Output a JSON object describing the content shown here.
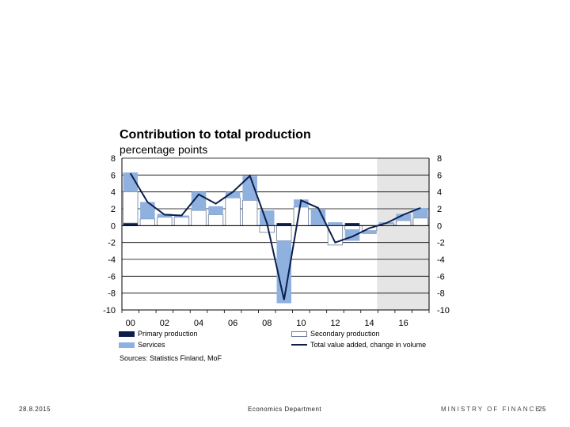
{
  "colors": {
    "primary": "#0b1f4a",
    "secondary": "#ffffff",
    "secondary_border": "#6a7a99",
    "services": "#8fb1e0",
    "line": "#0b1f4a",
    "forecast_shade": "#e5e5e5"
  },
  "chart_data": {
    "type": "bar",
    "title": "Contribution to total production",
    "ylabel": "percentage points",
    "xlabel": "",
    "ylim": [
      -10,
      8
    ],
    "yticks": [
      8,
      6,
      4,
      2,
      0,
      -2,
      -4,
      -6,
      -8,
      -10
    ],
    "x_tick_labels": [
      "00",
      "02",
      "04",
      "06",
      "08",
      "10",
      "12",
      "14",
      "16"
    ],
    "years": [
      2000,
      2001,
      2002,
      2003,
      2004,
      2005,
      2006,
      2007,
      2008,
      2009,
      2010,
      2011,
      2012,
      2013,
      2014,
      2015,
      2016,
      2017
    ],
    "forecast_from": 2015,
    "grid": true,
    "legend_position": "bottom",
    "series": [
      {
        "name": "Primary production",
        "kind": "bar",
        "values": [
          0.3,
          0.0,
          0.0,
          0.0,
          0.0,
          0.0,
          0.0,
          0.0,
          0.0,
          0.3,
          0.0,
          0.0,
          0.0,
          0.3,
          0.0,
          0.0,
          0.0,
          0.0
        ]
      },
      {
        "name": "Secondary production",
        "kind": "bar",
        "values": [
          3.7,
          0.8,
          1.0,
          1.0,
          1.8,
          1.3,
          3.3,
          3.0,
          -0.8,
          -1.8,
          2.2,
          0.0,
          -2.3,
          -0.5,
          -0.6,
          0.2,
          0.6,
          0.9
        ]
      },
      {
        "name": "Services",
        "kind": "bar",
        "values": [
          2.3,
          2.0,
          0.4,
          0.2,
          2.2,
          1.0,
          0.7,
          2.9,
          1.8,
          -7.4,
          0.9,
          2.0,
          0.4,
          -1.3,
          -0.4,
          0.2,
          0.8,
          1.2
        ]
      },
      {
        "name": "Total value added, change in volume",
        "kind": "line",
        "values": [
          6.2,
          2.8,
          1.3,
          1.2,
          3.7,
          2.6,
          4.0,
          5.9,
          0.3,
          -8.8,
          3.0,
          2.1,
          -2.0,
          -1.3,
          -0.3,
          0.3,
          1.3,
          2.1
        ]
      }
    ]
  },
  "chart": {
    "title": "Contribution to total production",
    "subtitle": "percentage points"
  },
  "legend": {
    "primary": "Primary production",
    "secondary": "Secondary production",
    "services": "Services",
    "total": "Total value added, change in volume"
  },
  "source": "Sources: Statistics Finland, MoF",
  "footer": {
    "date": "28.8.2015",
    "department": "Economics Department",
    "logo_text": "MINISTRY OF FINANCE",
    "page_number": "25"
  }
}
